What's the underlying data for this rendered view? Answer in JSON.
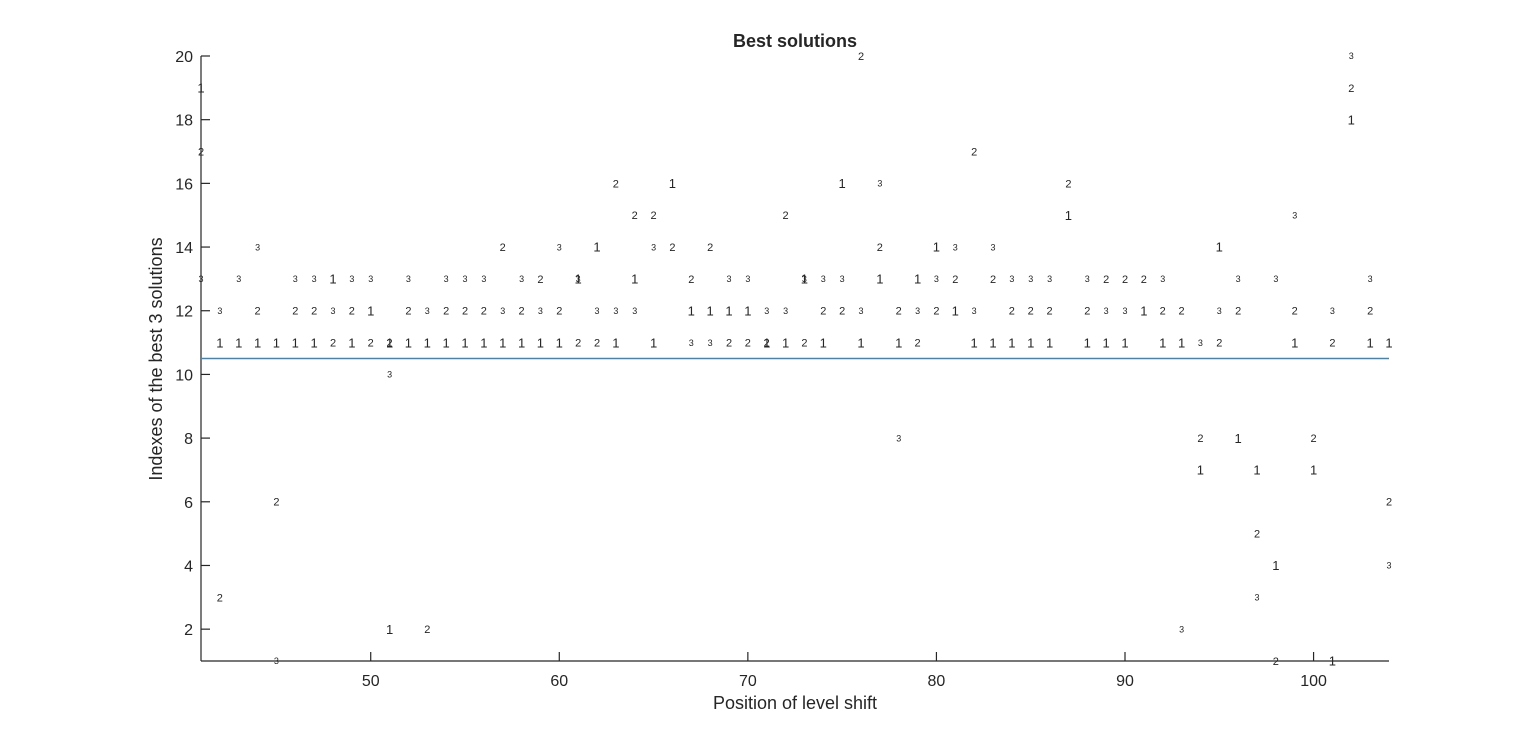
{
  "chart_data": {
    "type": "scatter",
    "title": "Best solutions",
    "xlabel": "Position of level shift",
    "ylabel": "Indexes of the best 3 solutions",
    "xlim": [
      41,
      104
    ],
    "ylim": [
      1,
      20
    ],
    "xticks": [
      50,
      60,
      70,
      80,
      90,
      100
    ],
    "yticks": [
      2,
      4,
      6,
      8,
      10,
      12,
      14,
      16,
      18,
      20
    ],
    "grid": false,
    "reference_line": {
      "y": 10.5,
      "color": "#3a87b8"
    },
    "marker_labels": [
      "1",
      "2",
      "3"
    ],
    "series": [
      {
        "marker": "1",
        "x": [
          41,
          42,
          43,
          44,
          45,
          46,
          47,
          48,
          49,
          50,
          51,
          51,
          52,
          53,
          54,
          55,
          56,
          57,
          58,
          59,
          60,
          61,
          62,
          63,
          64,
          65,
          66,
          67,
          68,
          69,
          70,
          71,
          72,
          73,
          74,
          75,
          76,
          77,
          78,
          79,
          80,
          81,
          82,
          83,
          84,
          85,
          86,
          87,
          88,
          89,
          90,
          91,
          92,
          93,
          94,
          95,
          96,
          97,
          98,
          99,
          100,
          101,
          102,
          103,
          104
        ],
        "y": [
          19,
          11,
          11,
          11,
          11,
          11,
          11,
          13,
          11,
          12,
          11,
          2,
          11,
          11,
          11,
          11,
          11,
          11,
          11,
          11,
          11,
          13,
          14,
          11,
          13,
          11,
          16,
          12,
          12,
          12,
          12,
          11,
          11,
          13,
          11,
          16,
          11,
          13,
          11,
          13,
          14,
          12,
          11,
          11,
          11,
          11,
          11,
          15,
          11,
          11,
          11,
          12,
          11,
          11,
          7,
          14,
          8,
          7,
          4,
          11,
          7,
          1,
          18,
          11,
          11
        ]
      },
      {
        "marker": "2",
        "x": [
          41,
          42,
          44,
          45,
          46,
          47,
          48,
          49,
          50,
          51,
          52,
          53,
          54,
          55,
          56,
          57,
          58,
          59,
          60,
          61,
          62,
          63,
          64,
          65,
          66,
          67,
          68,
          69,
          70,
          71,
          72,
          73,
          74,
          75,
          76,
          77,
          78,
          79,
          80,
          81,
          82,
          83,
          84,
          85,
          86,
          87,
          88,
          89,
          90,
          91,
          92,
          93,
          94,
          95,
          96,
          97,
          98,
          99,
          100,
          101,
          102,
          103,
          104
        ],
        "y": [
          17,
          3,
          12,
          6,
          12,
          12,
          11,
          12,
          11,
          11,
          12,
          2,
          12,
          12,
          12,
          14,
          12,
          13,
          12,
          11,
          11,
          16,
          15,
          15,
          14,
          13,
          14,
          11,
          11,
          11,
          15,
          11,
          12,
          12,
          20,
          14,
          12,
          11,
          12,
          13,
          17,
          13,
          12,
          12,
          12,
          16,
          12,
          13,
          13,
          13,
          12,
          12,
          8,
          11,
          12,
          5,
          1,
          12,
          8,
          11,
          19,
          12,
          6
        ]
      },
      {
        "marker": "3",
        "x": [
          41,
          42,
          43,
          44,
          45,
          46,
          47,
          48,
          49,
          50,
          51,
          52,
          53,
          54,
          55,
          56,
          57,
          58,
          59,
          60,
          61,
          62,
          63,
          64,
          65,
          67,
          68,
          69,
          70,
          71,
          72,
          73,
          74,
          75,
          76,
          77,
          78,
          79,
          80,
          81,
          82,
          83,
          84,
          85,
          86,
          88,
          89,
          90,
          92,
          93,
          94,
          95,
          96,
          97,
          98,
          99,
          101,
          102,
          103,
          104
        ],
        "y": [
          13,
          12,
          13,
          14,
          1,
          13,
          13,
          12,
          13,
          13,
          10,
          13,
          12,
          13,
          13,
          13,
          12,
          13,
          12,
          14,
          13,
          12,
          12,
          12,
          14,
          11,
          11,
          13,
          13,
          12,
          12,
          13,
          13,
          13,
          12,
          16,
          8,
          12,
          13,
          14,
          12,
          14,
          13,
          13,
          13,
          13,
          12,
          12,
          13,
          2,
          11,
          12,
          13,
          3,
          13,
          15,
          12,
          20,
          13,
          4
        ]
      }
    ]
  }
}
